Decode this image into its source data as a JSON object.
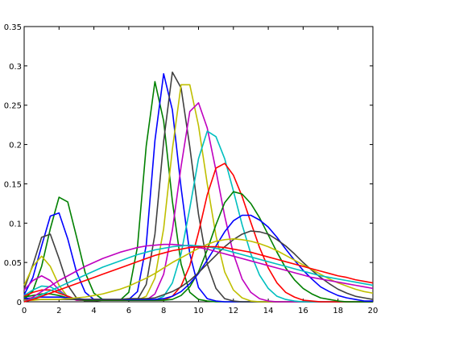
{
  "chart_data": {
    "type": "line",
    "x": [
      0,
      0.5,
      1,
      1.5,
      2,
      2.5,
      3,
      3.5,
      4,
      4.5,
      5,
      5.5,
      6,
      6.5,
      7,
      7.5,
      8,
      8.5,
      9,
      9.5,
      10,
      10.5,
      11,
      11.5,
      12,
      12.5,
      13,
      13.5,
      14,
      14.5,
      15,
      15.5,
      16,
      16.5,
      17,
      17.5,
      18,
      18.5,
      19,
      19.5,
      20
    ],
    "series": [
      {
        "color": "#008000",
        "values": [
          0.003,
          0.014,
          0.045,
          0.093,
          0.133,
          0.127,
          0.083,
          0.037,
          0.011,
          0.003,
          0.002,
          0.002,
          0.012,
          0.07,
          0.198,
          0.28,
          0.23,
          0.128,
          0.048,
          0.012,
          0.003,
          0.001,
          0,
          0,
          0,
          0,
          0,
          0,
          0,
          0,
          0,
          0,
          0,
          0,
          0,
          0,
          0,
          0,
          0,
          0,
          0
        ]
      },
      {
        "color": "#0000ff",
        "values": [
          0.009,
          0.031,
          0.071,
          0.109,
          0.113,
          0.08,
          0.038,
          0.012,
          0.003,
          0.003,
          0.002,
          0.002,
          0.003,
          0.013,
          0.072,
          0.205,
          0.29,
          0.244,
          0.145,
          0.061,
          0.018,
          0.004,
          0.001,
          0,
          0,
          0,
          0,
          0,
          0,
          0,
          0,
          0,
          0,
          0,
          0,
          0,
          0,
          0,
          0,
          0,
          0
        ]
      },
      {
        "color": "#404040",
        "values": [
          0.016,
          0.047,
          0.082,
          0.086,
          0.055,
          0.021,
          0.005,
          0.001,
          0.001,
          0.002,
          0.002,
          0.002,
          0.002,
          0.003,
          0.022,
          0.086,
          0.204,
          0.292,
          0.272,
          0.197,
          0.111,
          0.048,
          0.017,
          0.004,
          0.001,
          0,
          0,
          0,
          0,
          0,
          0,
          0,
          0,
          0,
          0,
          0,
          0,
          0,
          0,
          0,
          0
        ]
      },
      {
        "color": "#bfbf00",
        "values": [
          0.021,
          0.045,
          0.058,
          0.045,
          0.021,
          0.006,
          0.002,
          0.002,
          0.002,
          0.002,
          0.002,
          0.002,
          0.002,
          0.002,
          0.007,
          0.03,
          0.093,
          0.194,
          0.276,
          0.276,
          0.224,
          0.15,
          0.084,
          0.038,
          0.015,
          0.005,
          0.001,
          0,
          0,
          0,
          0,
          0,
          0,
          0,
          0,
          0,
          0,
          0,
          0,
          0,
          0
        ]
      },
      {
        "color": "#bf00bf",
        "values": [
          0.015,
          0.027,
          0.033,
          0.027,
          0.015,
          0.006,
          0.002,
          0.002,
          0.002,
          0.002,
          0.002,
          0.002,
          0.002,
          0.002,
          0.002,
          0.01,
          0.035,
          0.091,
          0.172,
          0.242,
          0.253,
          0.221,
          0.167,
          0.109,
          0.061,
          0.029,
          0.012,
          0.004,
          0.001,
          0,
          0,
          0,
          0,
          0,
          0,
          0,
          0,
          0,
          0,
          0,
          0
        ]
      },
      {
        "color": "#00bfbf",
        "values": [
          0.008,
          0.015,
          0.02,
          0.019,
          0.013,
          0.007,
          0.003,
          0.002,
          0.002,
          0.002,
          0.002,
          0.002,
          0.002,
          0.002,
          0.002,
          0.002,
          0.007,
          0.024,
          0.061,
          0.119,
          0.182,
          0.217,
          0.21,
          0.182,
          0.141,
          0.098,
          0.061,
          0.034,
          0.017,
          0.007,
          0.003,
          0.001,
          0,
          0,
          0,
          0,
          0,
          0,
          0,
          0,
          0
        ]
      },
      {
        "color": "#ff0000",
        "values": [
          0.007,
          0.012,
          0.015,
          0.015,
          0.011,
          0.007,
          0.003,
          0.002,
          0.002,
          0.002,
          0.002,
          0.002,
          0.002,
          0.002,
          0.002,
          0.002,
          0.002,
          0.007,
          0.02,
          0.046,
          0.088,
          0.136,
          0.17,
          0.176,
          0.161,
          0.134,
          0.101,
          0.069,
          0.043,
          0.024,
          0.012,
          0.006,
          0.002,
          0.001,
          0,
          0,
          0,
          0,
          0,
          0,
          0
        ]
      },
      {
        "color": "#008000",
        "values": [
          0.006,
          0.008,
          0.01,
          0.01,
          0.008,
          0.005,
          0.003,
          0.002,
          0.002,
          0.002,
          0.002,
          0.002,
          0.002,
          0.002,
          0.002,
          0.002,
          0.002,
          0.003,
          0.008,
          0.019,
          0.038,
          0.066,
          0.098,
          0.126,
          0.14,
          0.137,
          0.125,
          0.107,
          0.085,
          0.063,
          0.043,
          0.028,
          0.017,
          0.01,
          0.005,
          0.003,
          0.001,
          0,
          0,
          0,
          0
        ]
      },
      {
        "color": "#0000ff",
        "values": [
          0.004,
          0.005,
          0.006,
          0.006,
          0.006,
          0.005,
          0.004,
          0.003,
          0.003,
          0.003,
          0.003,
          0.003,
          0.003,
          0.003,
          0.003,
          0.003,
          0.004,
          0.007,
          0.013,
          0.023,
          0.036,
          0.053,
          0.071,
          0.089,
          0.103,
          0.11,
          0.11,
          0.104,
          0.095,
          0.082,
          0.067,
          0.053,
          0.04,
          0.029,
          0.019,
          0.013,
          0.008,
          0.005,
          0.003,
          0.001,
          0.001
        ]
      },
      {
        "color": "#404040",
        "values": [
          0.003,
          0.003,
          0.003,
          0.003,
          0.003,
          0.003,
          0.003,
          0.003,
          0.003,
          0.003,
          0.003,
          0.003,
          0.004,
          0.004,
          0.004,
          0.005,
          0.009,
          0.013,
          0.019,
          0.027,
          0.037,
          0.048,
          0.059,
          0.07,
          0.079,
          0.086,
          0.09,
          0.089,
          0.086,
          0.079,
          0.071,
          0.061,
          0.05,
          0.04,
          0.031,
          0.023,
          0.016,
          0.011,
          0.007,
          0.005,
          0.003
        ]
      },
      {
        "color": "#bfbf00",
        "values": [
          0.002,
          0.002,
          0.003,
          0.003,
          0.003,
          0.004,
          0.005,
          0.006,
          0.008,
          0.01,
          0.013,
          0.016,
          0.02,
          0.025,
          0.03,
          0.036,
          0.043,
          0.05,
          0.056,
          0.062,
          0.068,
          0.073,
          0.077,
          0.079,
          0.08,
          0.079,
          0.077,
          0.074,
          0.07,
          0.065,
          0.059,
          0.053,
          0.047,
          0.041,
          0.035,
          0.029,
          0.024,
          0.02,
          0.016,
          0.013,
          0.011
        ]
      },
      {
        "color": "#bf00bf",
        "values": [
          0,
          0.006,
          0.013,
          0.02,
          0.027,
          0.033,
          0.039,
          0.045,
          0.05,
          0.055,
          0.059,
          0.063,
          0.066,
          0.069,
          0.071,
          0.072,
          0.073,
          0.073,
          0.072,
          0.071,
          0.069,
          0.067,
          0.064,
          0.061,
          0.058,
          0.055,
          0.052,
          0.049,
          0.046,
          0.043,
          0.04,
          0.037,
          0.034,
          0.031,
          0.029,
          0.027,
          0.025,
          0.023,
          0.021,
          0.019,
          0.017
        ]
      },
      {
        "color": "#00bfbf",
        "values": [
          0,
          0.004,
          0.009,
          0.014,
          0.019,
          0.024,
          0.029,
          0.034,
          0.039,
          0.044,
          0.048,
          0.052,
          0.056,
          0.06,
          0.063,
          0.066,
          0.068,
          0.07,
          0.071,
          0.072,
          0.071,
          0.07,
          0.068,
          0.066,
          0.063,
          0.06,
          0.057,
          0.054,
          0.051,
          0.048,
          0.045,
          0.042,
          0.039,
          0.036,
          0.033,
          0.031,
          0.029,
          0.027,
          0.025,
          0.023,
          0.021
        ]
      },
      {
        "color": "#ff0000",
        "values": [
          0,
          0.003,
          0.007,
          0.011,
          0.015,
          0.019,
          0.023,
          0.027,
          0.031,
          0.035,
          0.039,
          0.043,
          0.047,
          0.051,
          0.055,
          0.059,
          0.062,
          0.065,
          0.067,
          0.069,
          0.07,
          0.07,
          0.07,
          0.069,
          0.067,
          0.065,
          0.063,
          0.06,
          0.057,
          0.054,
          0.051,
          0.048,
          0.045,
          0.042,
          0.039,
          0.036,
          0.033,
          0.031,
          0.028,
          0.026,
          0.024
        ]
      }
    ],
    "xlim": [
      0,
      20
    ],
    "xticks": [
      0,
      2,
      4,
      6,
      8,
      10,
      12,
      14,
      16,
      18,
      20
    ],
    "ylim": [
      0,
      0.35
    ],
    "yticks": [
      0,
      0.05,
      0.1,
      0.15,
      0.2,
      0.25,
      0.3,
      0.35
    ],
    "grid": false
  }
}
